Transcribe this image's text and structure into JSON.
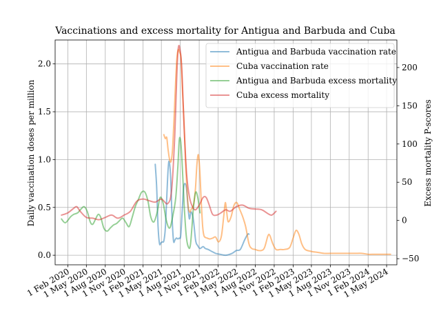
{
  "chart_data": {
    "type": "line",
    "title": "Vaccinations and excess mortality for Antigua and Barbuda and Cuba",
    "ylabel_left": "Daily vaccination doses per million",
    "ylabel_right": "Excess mortality P-scores",
    "x_range": [
      "2019-12-01",
      "2024-06-20"
    ],
    "ylim_left": [
      -0.1,
      2.25
    ],
    "ylim_right": [
      -58,
      236
    ],
    "x_ticks": [
      {
        "date": "2020-02-01",
        "label": "1 Feb 2020"
      },
      {
        "date": "2020-05-01",
        "label": "1 May 2020"
      },
      {
        "date": "2020-08-01",
        "label": "1 Aug 2020"
      },
      {
        "date": "2020-11-01",
        "label": "1 Nov 2020"
      },
      {
        "date": "2021-02-01",
        "label": "1 Feb 2021"
      },
      {
        "date": "2021-05-01",
        "label": "1 May 2021"
      },
      {
        "date": "2021-08-01",
        "label": "1 Aug 2021"
      },
      {
        "date": "2021-11-01",
        "label": "1 Nov 2021"
      },
      {
        "date": "2022-02-01",
        "label": "1 Feb 2022"
      },
      {
        "date": "2022-05-01",
        "label": "1 May 2022"
      },
      {
        "date": "2022-08-01",
        "label": "1 Aug 2022"
      },
      {
        "date": "2022-11-01",
        "label": "1 Nov 2022"
      },
      {
        "date": "2023-02-01",
        "label": "1 Feb 2023"
      },
      {
        "date": "2023-05-01",
        "label": "1 May 2023"
      },
      {
        "date": "2023-08-01",
        "label": "1 Aug 2023"
      },
      {
        "date": "2023-11-01",
        "label": "1 Nov 2023"
      },
      {
        "date": "2024-02-01",
        "label": "1 Feb 2024"
      },
      {
        "date": "2024-05-01",
        "label": "1 May 2024"
      }
    ],
    "y_ticks_left": [
      0.0,
      0.5,
      1.0,
      1.5,
      2.0
    ],
    "y_tick_labels_left": [
      "0.0",
      "0.5",
      "1.0",
      "1.5",
      "2.0"
    ],
    "y_ticks_right": [
      -50,
      0,
      50,
      100,
      150,
      200
    ],
    "y_tick_labels_right": [
      "−50",
      "0",
      "50",
      "100",
      "150",
      "200"
    ],
    "grid": true,
    "legend_position": "top-right",
    "series": [
      {
        "name": "Antigua and Barbuda vaccination rate",
        "axis": "left",
        "color": "#1f77b4",
        "points": [
          [
            "2021-04-01",
            0.95
          ],
          [
            "2021-04-08",
            0.72
          ],
          [
            "2021-04-15",
            0.3
          ],
          [
            "2021-04-22",
            0.12
          ],
          [
            "2021-04-29",
            0.13
          ],
          [
            "2021-05-06",
            0.14
          ],
          [
            "2021-05-13",
            0.15
          ],
          [
            "2021-05-20",
            0.28
          ],
          [
            "2021-05-27",
            0.6
          ],
          [
            "2021-06-03",
            0.9
          ],
          [
            "2021-06-08",
            0.98
          ],
          [
            "2021-06-15",
            0.82
          ],
          [
            "2021-06-22",
            0.4
          ],
          [
            "2021-06-29",
            0.15
          ],
          [
            "2021-07-06",
            0.16
          ],
          [
            "2021-07-13",
            0.18
          ],
          [
            "2021-07-20",
            0.17
          ],
          [
            "2021-07-27",
            0.18
          ],
          [
            "2021-08-03",
            0.2
          ],
          [
            "2021-08-10",
            0.45
          ],
          [
            "2021-08-17",
            0.7
          ],
          [
            "2021-08-24",
            0.75
          ],
          [
            "2021-08-31",
            0.7
          ],
          [
            "2021-09-07",
            0.52
          ],
          [
            "2021-09-14",
            0.38
          ],
          [
            "2021-09-21",
            0.45
          ],
          [
            "2021-09-28",
            0.43
          ],
          [
            "2021-10-05",
            0.35
          ],
          [
            "2021-10-15",
            0.15
          ],
          [
            "2021-10-25",
            0.1
          ],
          [
            "2021-11-05",
            0.07
          ],
          [
            "2021-11-20",
            0.09
          ],
          [
            "2021-12-01",
            0.07
          ],
          [
            "2021-12-15",
            0.06
          ],
          [
            "2022-01-01",
            0.04
          ],
          [
            "2022-01-20",
            0.02
          ],
          [
            "2022-02-10",
            0.01
          ],
          [
            "2022-03-10",
            0.0
          ],
          [
            "2022-04-10",
            0.02
          ],
          [
            "2022-05-01",
            0.05
          ],
          [
            "2022-05-20",
            0.06
          ],
          [
            "2022-06-10",
            0.16
          ],
          [
            "2022-06-25",
            0.22
          ],
          [
            "2022-07-01",
            0.22
          ]
        ]
      },
      {
        "name": "Cuba vaccination rate",
        "axis": "left",
        "color": "#ff7f0e",
        "points": [
          [
            "2021-05-13",
            1.26
          ],
          [
            "2021-05-20",
            1.22
          ],
          [
            "2021-05-27",
            1.23
          ],
          [
            "2021-06-03",
            1.1
          ],
          [
            "2021-06-10",
            1.0
          ],
          [
            "2021-06-17",
            0.98
          ],
          [
            "2021-06-24",
            1.1
          ],
          [
            "2021-07-01",
            1.4
          ],
          [
            "2021-07-08",
            1.75
          ],
          [
            "2021-07-15",
            2.05
          ],
          [
            "2021-07-22",
            2.15
          ],
          [
            "2021-07-29",
            2.12
          ],
          [
            "2021-08-05",
            2.05
          ],
          [
            "2021-08-12",
            1.7
          ],
          [
            "2021-08-19",
            1.4
          ],
          [
            "2021-08-26",
            1.0
          ],
          [
            "2021-09-02",
            0.7
          ],
          [
            "2021-09-09",
            0.5
          ],
          [
            "2021-09-16",
            0.45
          ],
          [
            "2021-09-23",
            0.48
          ],
          [
            "2021-09-30",
            0.5
          ],
          [
            "2021-10-07",
            0.55
          ],
          [
            "2021-10-14",
            0.7
          ],
          [
            "2021-10-21",
            0.95
          ],
          [
            "2021-10-28",
            1.05
          ],
          [
            "2021-11-04",
            0.88
          ],
          [
            "2021-11-11",
            0.55
          ],
          [
            "2021-11-18",
            0.3
          ],
          [
            "2021-11-25",
            0.2
          ],
          [
            "2021-12-09",
            0.18
          ],
          [
            "2021-12-23",
            0.17
          ],
          [
            "2022-01-06",
            0.18
          ],
          [
            "2022-01-20",
            0.19
          ],
          [
            "2022-02-03",
            0.14
          ],
          [
            "2022-02-17",
            0.2
          ],
          [
            "2022-03-01",
            0.42
          ],
          [
            "2022-03-08",
            0.55
          ],
          [
            "2022-03-15",
            0.45
          ],
          [
            "2022-03-22",
            0.35
          ],
          [
            "2022-04-05",
            0.4
          ],
          [
            "2022-04-19",
            0.52
          ],
          [
            "2022-05-03",
            0.55
          ],
          [
            "2022-05-17",
            0.48
          ],
          [
            "2022-06-01",
            0.4
          ],
          [
            "2022-06-15",
            0.3
          ],
          [
            "2022-07-01",
            0.12
          ],
          [
            "2022-07-15",
            0.07
          ],
          [
            "2022-08-01",
            0.06
          ],
          [
            "2022-08-15",
            0.05
          ],
          [
            "2022-09-01",
            0.05
          ],
          [
            "2022-09-15",
            0.08
          ],
          [
            "2022-10-01",
            0.2
          ],
          [
            "2022-10-10",
            0.21
          ],
          [
            "2022-10-25",
            0.12
          ],
          [
            "2022-11-10",
            0.06
          ],
          [
            "2022-12-01",
            0.06
          ],
          [
            "2022-12-20",
            0.06
          ],
          [
            "2023-01-15",
            0.08
          ],
          [
            "2023-02-01",
            0.18
          ],
          [
            "2023-02-15",
            0.26
          ],
          [
            "2023-03-01",
            0.22
          ],
          [
            "2023-03-15",
            0.12
          ],
          [
            "2023-04-01",
            0.06
          ],
          [
            "2023-05-01",
            0.04
          ],
          [
            "2023-06-01",
            0.03
          ],
          [
            "2023-07-01",
            0.02
          ],
          [
            "2023-08-01",
            0.02
          ],
          [
            "2023-09-01",
            0.02
          ],
          [
            "2023-10-01",
            0.02
          ],
          [
            "2023-11-01",
            0.02
          ],
          [
            "2023-12-01",
            0.02
          ],
          [
            "2024-01-01",
            0.02
          ],
          [
            "2024-02-01",
            0.01
          ],
          [
            "2024-03-01",
            0.01
          ],
          [
            "2024-04-01",
            0.01
          ],
          [
            "2024-05-01",
            0.01
          ],
          [
            "2024-05-20",
            0.01
          ]
        ]
      },
      {
        "name": "Antigua and Barbuda excess mortality",
        "axis": "right",
        "color": "#2ca02c",
        "points": [
          [
            "2020-01-01",
            2
          ],
          [
            "2020-01-20",
            -3
          ],
          [
            "2020-02-15",
            5
          ],
          [
            "2020-03-01",
            8
          ],
          [
            "2020-03-20",
            10
          ],
          [
            "2020-04-05",
            15
          ],
          [
            "2020-04-20",
            18
          ],
          [
            "2020-05-05",
            12
          ],
          [
            "2020-05-20",
            -2
          ],
          [
            "2020-06-01",
            -5
          ],
          [
            "2020-06-15",
            2
          ],
          [
            "2020-06-28",
            8
          ],
          [
            "2020-07-10",
            4
          ],
          [
            "2020-07-25",
            -10
          ],
          [
            "2020-08-10",
            -14
          ],
          [
            "2020-08-25",
            -10
          ],
          [
            "2020-09-10",
            -6
          ],
          [
            "2020-09-25",
            -4
          ],
          [
            "2020-10-10",
            0
          ],
          [
            "2020-10-25",
            3
          ],
          [
            "2020-11-10",
            -3
          ],
          [
            "2020-11-25",
            -8
          ],
          [
            "2020-12-10",
            4
          ],
          [
            "2020-12-25",
            18
          ],
          [
            "2021-01-10",
            28
          ],
          [
            "2021-01-25",
            37
          ],
          [
            "2021-02-10",
            37
          ],
          [
            "2021-02-25",
            25
          ],
          [
            "2021-03-10",
            5
          ],
          [
            "2021-03-25",
            -2
          ],
          [
            "2021-04-10",
            10
          ],
          [
            "2021-04-25",
            30
          ],
          [
            "2021-05-10",
            22
          ],
          [
            "2021-05-25",
            0
          ],
          [
            "2021-06-10",
            -10
          ],
          [
            "2021-06-25",
            5
          ],
          [
            "2021-07-10",
            30
          ],
          [
            "2021-07-20",
            70
          ],
          [
            "2021-07-27",
            105
          ],
          [
            "2021-08-03",
            104
          ],
          [
            "2021-08-10",
            75
          ],
          [
            "2021-08-20",
            20
          ],
          [
            "2021-08-30",
            -20
          ],
          [
            "2021-09-10",
            -35
          ],
          [
            "2021-09-20",
            -30
          ],
          [
            "2021-10-05",
            20
          ],
          [
            "2021-10-15",
            37
          ],
          [
            "2021-10-25",
            30
          ],
          [
            "2021-11-05",
            10
          ]
        ]
      },
      {
        "name": "Cuba excess mortality",
        "axis": "right",
        "color": "#d62728",
        "points": [
          [
            "2020-01-01",
            7
          ],
          [
            "2020-02-01",
            10
          ],
          [
            "2020-03-01",
            16
          ],
          [
            "2020-03-15",
            18
          ],
          [
            "2020-04-01",
            12
          ],
          [
            "2020-05-01",
            4
          ],
          [
            "2020-06-01",
            3
          ],
          [
            "2020-07-01",
            1
          ],
          [
            "2020-08-01",
            4
          ],
          [
            "2020-09-01",
            7
          ],
          [
            "2020-10-01",
            3
          ],
          [
            "2020-11-01",
            7
          ],
          [
            "2020-12-01",
            12
          ],
          [
            "2021-01-01",
            25
          ],
          [
            "2021-02-01",
            28
          ],
          [
            "2021-03-01",
            26
          ],
          [
            "2021-04-01",
            24
          ],
          [
            "2021-05-01",
            28
          ],
          [
            "2021-06-01",
            22
          ],
          [
            "2021-06-20",
            40
          ],
          [
            "2021-07-05",
            110
          ],
          [
            "2021-07-15",
            190
          ],
          [
            "2021-07-22",
            225
          ],
          [
            "2021-07-30",
            225
          ],
          [
            "2021-08-08",
            200
          ],
          [
            "2021-08-20",
            120
          ],
          [
            "2021-09-01",
            60
          ],
          [
            "2021-09-15",
            30
          ],
          [
            "2021-10-01",
            17
          ],
          [
            "2021-10-15",
            14
          ],
          [
            "2021-11-01",
            20
          ],
          [
            "2021-11-20",
            30
          ],
          [
            "2021-12-05",
            30
          ],
          [
            "2021-12-20",
            20
          ],
          [
            "2022-01-05",
            8
          ],
          [
            "2022-01-25",
            7
          ],
          [
            "2022-02-15",
            10
          ],
          [
            "2022-03-10",
            14
          ],
          [
            "2022-04-01",
            12
          ],
          [
            "2022-05-01",
            18
          ],
          [
            "2022-06-01",
            20
          ],
          [
            "2022-07-01",
            16
          ],
          [
            "2022-08-01",
            15
          ],
          [
            "2022-09-01",
            14
          ],
          [
            "2022-10-01",
            9
          ],
          [
            "2022-10-20",
            7
          ],
          [
            "2022-11-10",
            12
          ]
        ]
      }
    ]
  }
}
